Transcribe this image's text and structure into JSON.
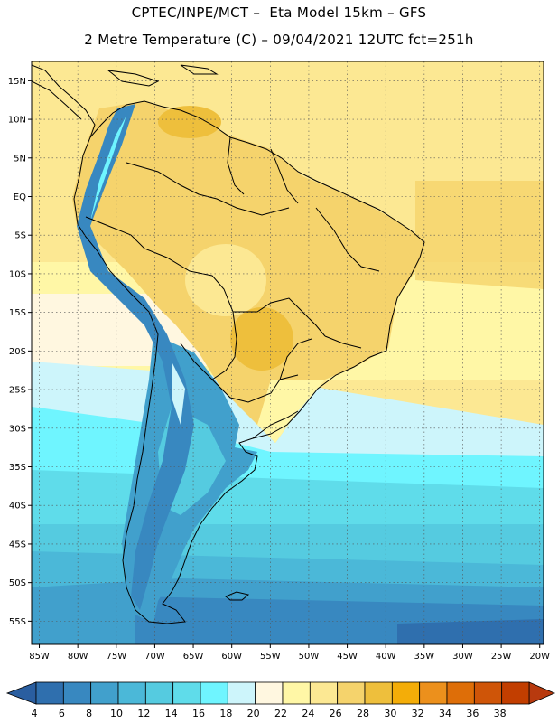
{
  "header": {
    "line1": "CPTEC/INPE/MCT –  Eta Model 15km – GFS",
    "line2": "2 Metre Temperature (C) – 09/04/2021 12UTC fct=251h"
  },
  "axes": {
    "lat_labels": [
      "15N",
      "10N",
      "5N",
      "EQ",
      "5S",
      "10S",
      "15S",
      "20S",
      "25S",
      "30S",
      "35S",
      "40S",
      "45S",
      "50S",
      "55S"
    ],
    "lat_values": [
      15,
      10,
      5,
      0,
      -5,
      -10,
      -15,
      -20,
      -25,
      -30,
      -35,
      -40,
      -45,
      -50,
      -55
    ],
    "lon_labels": [
      "85W",
      "80W",
      "75W",
      "70W",
      "65W",
      "60W",
      "55W",
      "50W",
      "45W",
      "40W",
      "35W",
      "30W",
      "25W",
      "20W"
    ],
    "lon_values": [
      -85,
      -80,
      -75,
      -70,
      -65,
      -60,
      -55,
      -50,
      -45,
      -40,
      -35,
      -30,
      -25,
      -20
    ],
    "lon_range": [
      -86,
      -19.5
    ],
    "lat_range": [
      -58,
      17.5
    ]
  },
  "colorbar": {
    "labels": [
      "4",
      "6",
      "8",
      "10",
      "12",
      "14",
      "16",
      "18",
      "20",
      "22",
      "24",
      "26",
      "28",
      "30",
      "32",
      "34",
      "36",
      "38"
    ],
    "colors": [
      "#2f6fae",
      "#3888c0",
      "#41a0cc",
      "#4bb8d8",
      "#55cbe0",
      "#5fdcea",
      "#6ff5ff",
      "#cdf5fb",
      "#fff7e0",
      "#fff7a6",
      "#fce893",
      "#f5d36c",
      "#eebf3c",
      "#f4ad08",
      "#ec901c",
      "#de6e08",
      "#cf5508",
      "#c23e00"
    ],
    "low_color": "#2a5ea0",
    "high_color": "#b83a0e"
  },
  "colors": {
    "ocean_tropical": "#fce893",
    "ocean_mid": "#fff7a6",
    "ocean_cool": "#5fdcea",
    "ocean_cold": "#3888c0",
    "land_hot": "#f5d36c",
    "land_warm": "#eebf3c",
    "andes": "#3888c0",
    "outline": "#000000",
    "grid": "#555555"
  }
}
